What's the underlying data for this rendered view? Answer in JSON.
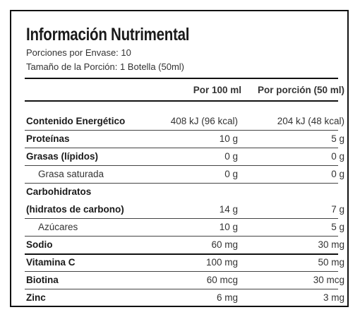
{
  "header": {
    "title": "Información Nutrimental",
    "servings": "Porciones por Envase: 10",
    "serving_size": "Tamaño de la Porción: 1 Botella (50ml)"
  },
  "table": {
    "columns": [
      "Por 100 ml",
      "Por porción (50 ml)"
    ],
    "rows": [
      [
        "Contenido Energético",
        "408 kJ (96 kcal)",
        "204 kJ (48 kcal)"
      ],
      [
        "Proteínas",
        "10 g",
        "5 g"
      ],
      [
        "Grasas (lípidos)",
        "0 g",
        "0 g"
      ],
      [
        "Grasa saturada",
        "0 g",
        "0 g"
      ],
      [
        "Carbohidratos"
      ],
      [
        "(hidratos de carbono)",
        "14 g",
        "7 g"
      ],
      [
        "Azúcares",
        "10 g",
        "5 g"
      ],
      [
        "Sodio",
        "60 mg",
        "30 mg"
      ],
      [
        "Vitamina C",
        "100 mg",
        "50 mg"
      ],
      [
        "Biotina",
        "60 mcg",
        "30 mcg"
      ],
      [
        "Zinc",
        "6 mg",
        "3 mg"
      ]
    ]
  }
}
